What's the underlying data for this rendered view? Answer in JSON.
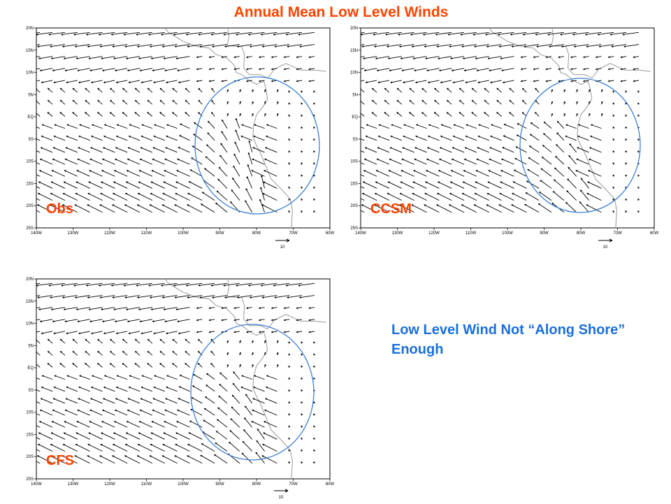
{
  "title": "Annual Mean Low Level Winds",
  "colors": {
    "title": "#ff4400",
    "label": "#ff4400",
    "note": "#1a6fdd",
    "circle": "#3a7fd5",
    "coast": "#999999"
  },
  "lat_ticks": [
    "20N",
    "15N",
    "10N",
    "5N",
    "EQ",
    "5S",
    "10S",
    "15S",
    "20S",
    "25S"
  ],
  "lon_ticks": [
    "140W",
    "130W",
    "120W",
    "110W",
    "100W",
    "90W",
    "80W",
    "70W",
    "60W"
  ],
  "vector_scale": "10",
  "panels": [
    {
      "id": "obs",
      "label": "Obs"
    },
    {
      "id": "ccsm",
      "label": "CCSM"
    },
    {
      "id": "cfs",
      "label": "CFS"
    }
  ],
  "note": "Low Level Wind Not “Along Shore” Enough"
}
